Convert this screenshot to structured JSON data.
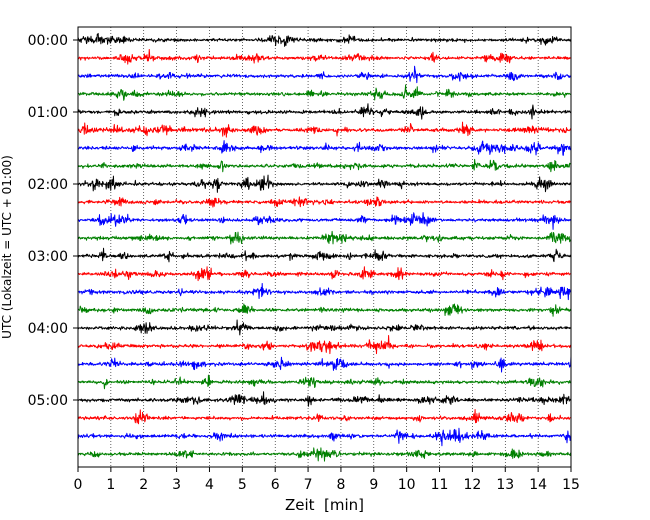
{
  "chart_data": {
    "type": "line",
    "title": "",
    "xlabel": "Zeit  [min]",
    "ylabel": "UTC (Lokalzeit = UTC + 01:00)",
    "xlim": [
      0,
      15
    ],
    "x_ticks": [
      "0",
      "1",
      "2",
      "3",
      "4",
      "5",
      "6",
      "7",
      "8",
      "9",
      "10",
      "11",
      "12",
      "13",
      "14",
      "15"
    ],
    "y_tick_labels": [
      "00:00",
      "01:00",
      "02:00",
      "03:00",
      "04:00",
      "05:00"
    ],
    "grid": "vertical dotted at each minute",
    "trace_interval_minutes": 15,
    "trace_count": 24,
    "colors": [
      "#000000",
      "#ff0000",
      "#0000ff",
      "#008000"
    ],
    "traces": [
      {
        "start": "00:00",
        "color": "#000000"
      },
      {
        "start": "00:15",
        "color": "#ff0000"
      },
      {
        "start": "00:30",
        "color": "#0000ff"
      },
      {
        "start": "00:45",
        "color": "#008000"
      },
      {
        "start": "01:00",
        "color": "#000000"
      },
      {
        "start": "01:15",
        "color": "#ff0000"
      },
      {
        "start": "01:30",
        "color": "#0000ff"
      },
      {
        "start": "01:45",
        "color": "#008000"
      },
      {
        "start": "02:00",
        "color": "#000000"
      },
      {
        "start": "02:15",
        "color": "#ff0000"
      },
      {
        "start": "02:30",
        "color": "#0000ff"
      },
      {
        "start": "02:45",
        "color": "#008000"
      },
      {
        "start": "03:00",
        "color": "#000000"
      },
      {
        "start": "03:15",
        "color": "#ff0000"
      },
      {
        "start": "03:30",
        "color": "#0000ff"
      },
      {
        "start": "03:45",
        "color": "#008000"
      },
      {
        "start": "04:00",
        "color": "#000000"
      },
      {
        "start": "04:15",
        "color": "#ff0000"
      },
      {
        "start": "04:30",
        "color": "#0000ff"
      },
      {
        "start": "04:45",
        "color": "#008000"
      },
      {
        "start": "05:00",
        "color": "#000000"
      },
      {
        "start": "05:15",
        "color": "#ff0000"
      },
      {
        "start": "05:30",
        "color": "#0000ff"
      },
      {
        "start": "05:45",
        "color": "#008000"
      }
    ]
  }
}
